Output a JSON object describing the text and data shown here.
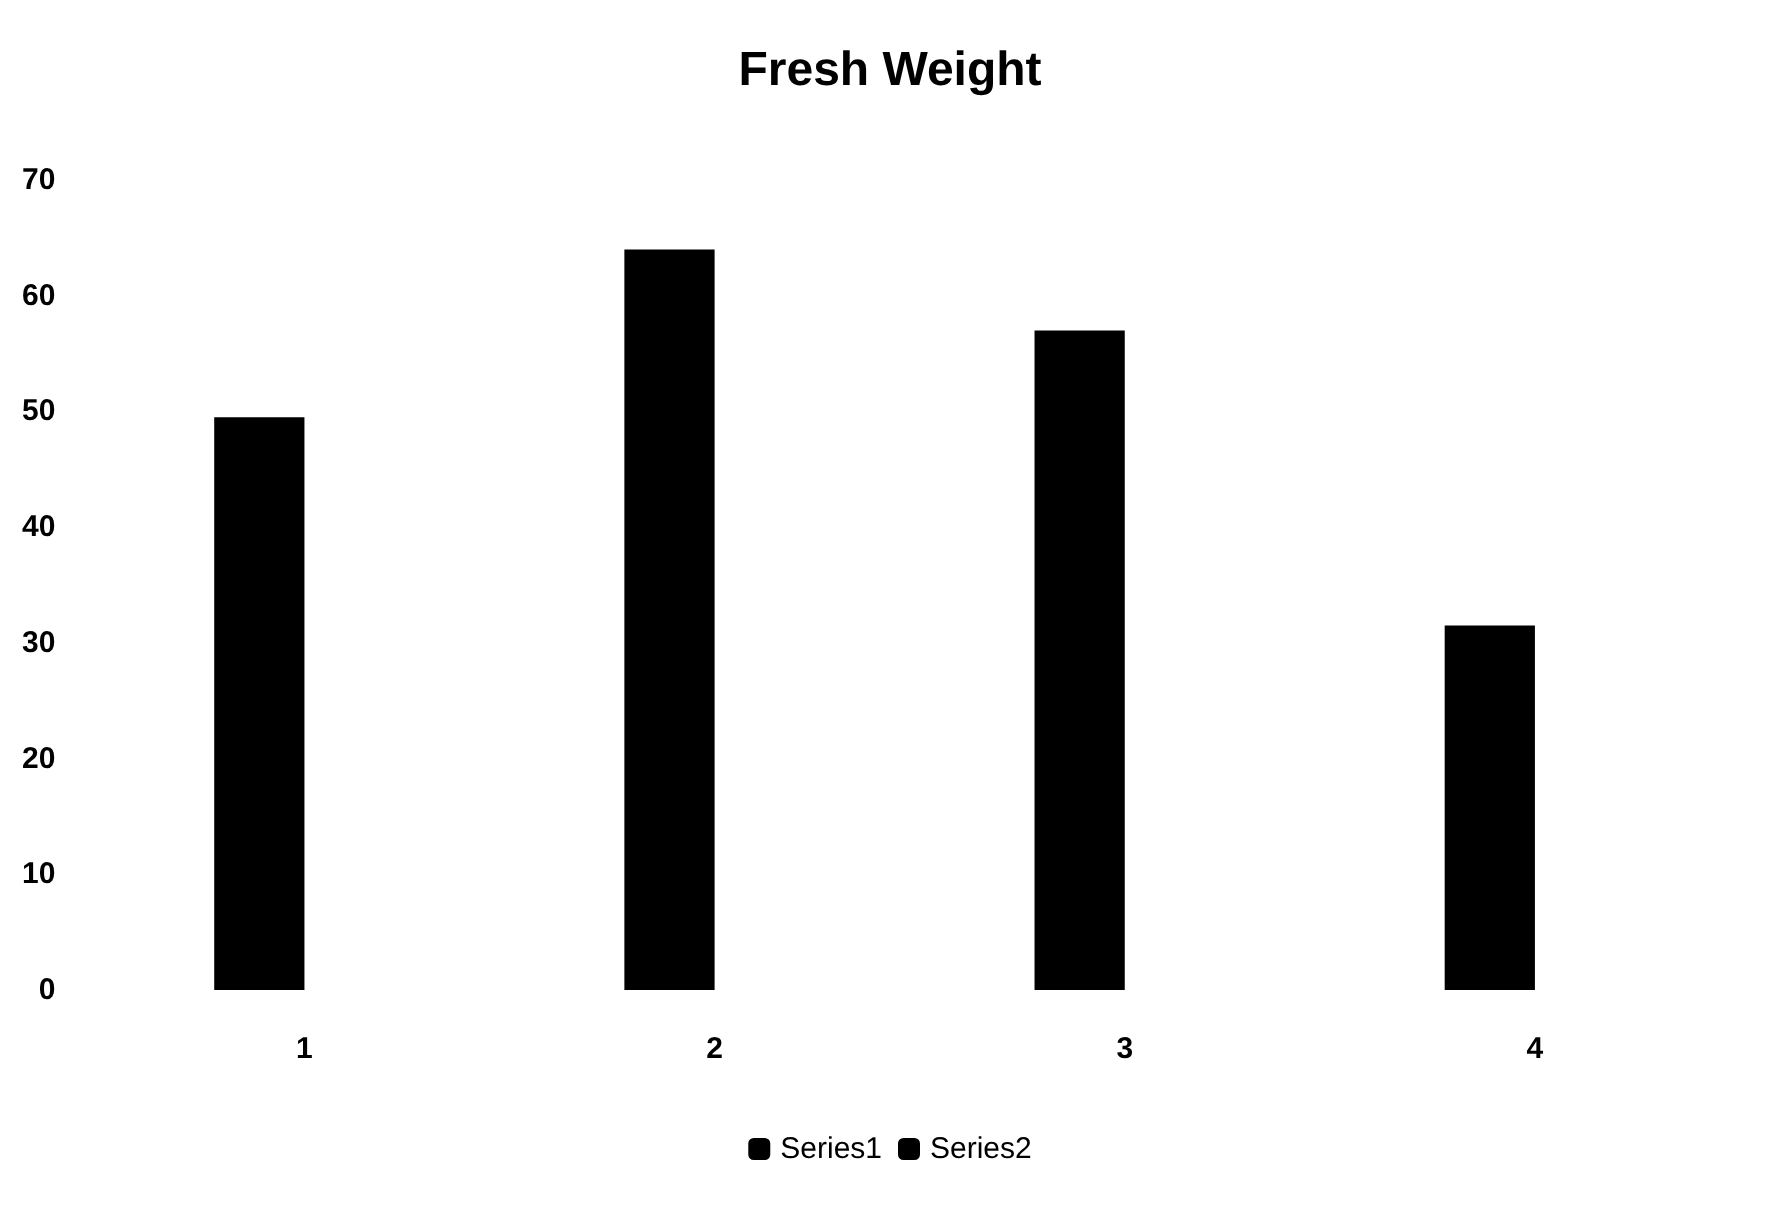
{
  "chart_data": {
    "type": "bar",
    "title": "Fresh Weight",
    "categories": [
      "1",
      "2",
      "3",
      "4"
    ],
    "series": [
      {
        "name": "Series1",
        "color": "#000000",
        "values": [
          49.5,
          64,
          57,
          31.5
        ]
      },
      {
        "name": "Series2",
        "color": "#000000",
        "values": [
          null,
          null,
          null,
          null
        ]
      }
    ],
    "ylim": [
      0,
      70
    ],
    "yticks": [
      0,
      10,
      20,
      30,
      40,
      50,
      60,
      70
    ],
    "grid": false,
    "legend": "bottom"
  }
}
